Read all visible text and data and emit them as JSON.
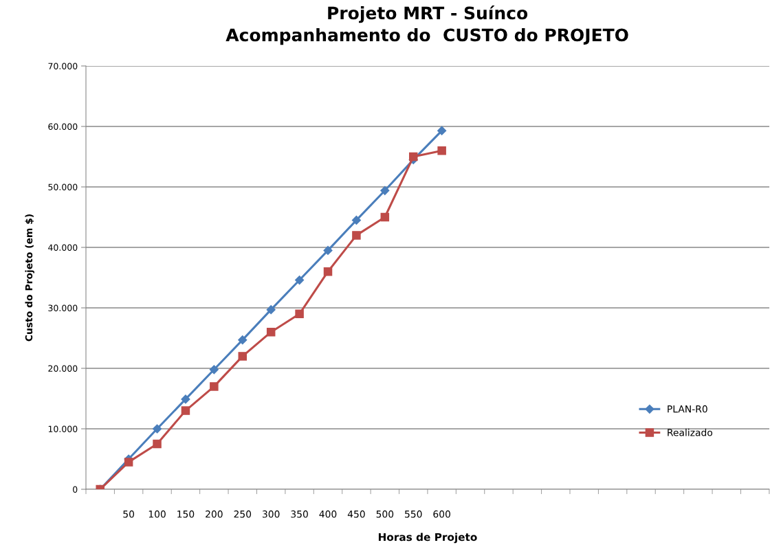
{
  "chart_data": {
    "type": "line",
    "title": "Projeto MRT - Suínco\nAcompanhamento do  CUSTO do PROJETO",
    "xlabel": "Horas de Projeto",
    "ylabel": "Custo do Projeto (em $)",
    "categories": [
      null,
      "50",
      "100",
      "150",
      "200",
      "250",
      "300",
      "350",
      "400",
      "450",
      "500",
      "550",
      "600",
      null,
      null,
      null,
      null,
      null,
      null,
      null,
      null,
      null,
      null,
      null
    ],
    "series": [
      {
        "name": "PLAN-R0",
        "color": "#4a7ebb",
        "marker": "diamond",
        "values": [
          0,
          5000,
          10000,
          14900,
          19800,
          24700,
          29700,
          34600,
          39500,
          44500,
          49400,
          54500,
          59300,
          null,
          null,
          null,
          null,
          null,
          null,
          null,
          null,
          null,
          null,
          null
        ]
      },
      {
        "name": "Realizado",
        "color": "#be4b48",
        "marker": "square",
        "values": [
          0,
          4500,
          7500,
          13000,
          17000,
          22000,
          26000,
          29000,
          36000,
          42000,
          45000,
          55000,
          56000,
          null,
          null,
          null,
          null,
          null,
          null,
          null,
          null,
          null,
          null,
          null
        ]
      }
    ],
    "ylim": [
      0,
      70000
    ],
    "yticks": [
      {
        "value": 0,
        "label": "0"
      },
      {
        "value": 10000,
        "label": "10.000"
      },
      {
        "value": 20000,
        "label": "20.000"
      },
      {
        "value": 30000,
        "label": "30.000"
      },
      {
        "value": 40000,
        "label": "40.000"
      },
      {
        "value": 50000,
        "label": "50.000"
      },
      {
        "value": 60000,
        "label": "60.000"
      },
      {
        "value": 70000,
        "label": "70.000"
      }
    ],
    "grid": "y",
    "legend": "right",
    "line_style": "solid"
  }
}
